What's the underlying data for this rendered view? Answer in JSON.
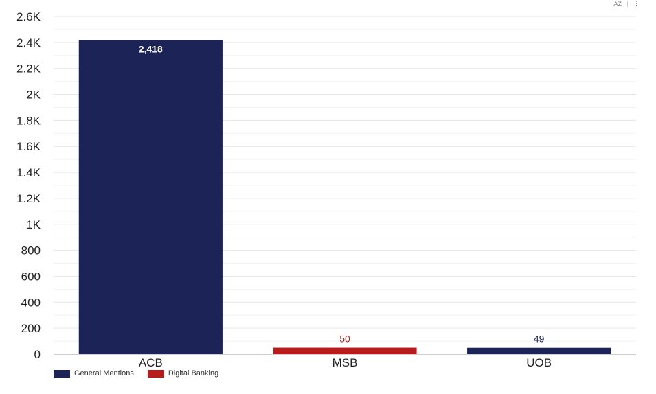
{
  "chart_data": {
    "type": "bar",
    "categories": [
      "ACB",
      "MSB",
      "UOB"
    ],
    "values": [
      2418,
      50,
      49
    ],
    "data_labels": [
      "2,418",
      "50",
      "49"
    ],
    "bar_series": [
      "General Mentions",
      "Digital Banking",
      "General Mentions"
    ],
    "ylim": [
      0,
      2600
    ],
    "yticks": [
      "0",
      "200",
      "400",
      "600",
      "800",
      "1K",
      "1.2K",
      "1.4K",
      "1.6K",
      "1.8K",
      "2K",
      "2.2K",
      "2.4K",
      "2.6K"
    ],
    "grid": true,
    "legend_position": "bottom-left",
    "legend": [
      {
        "name": "General Mentions",
        "color": "#1c2357"
      },
      {
        "name": "Digital Banking",
        "color": "#b71c1c"
      }
    ]
  },
  "toolbar": {
    "sort_icon": "sort-az-icon",
    "more_icon": "more-vertical-icon",
    "sort_text": "AZ",
    "more_text": "⋮"
  }
}
